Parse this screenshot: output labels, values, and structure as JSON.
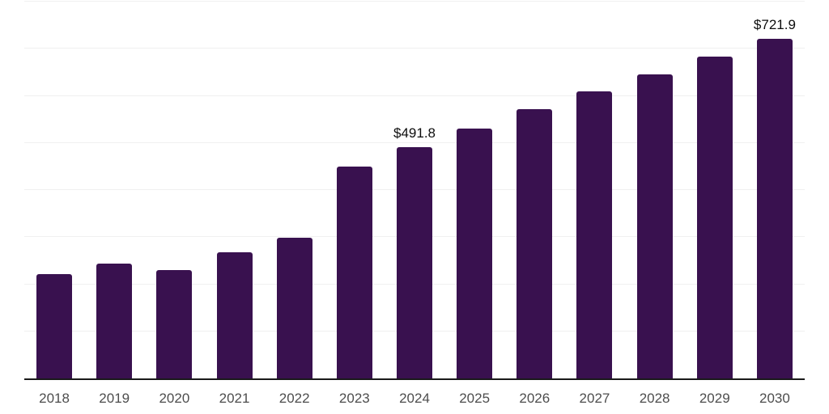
{
  "chart_data": {
    "type": "bar",
    "title": "",
    "xlabel": "",
    "ylabel": "",
    "categories": [
      "2018",
      "2019",
      "2020",
      "2021",
      "2022",
      "2023",
      "2024",
      "2025",
      "2026",
      "2027",
      "2028",
      "2029",
      "2030"
    ],
    "values": [
      221,
      244,
      230,
      268,
      299,
      450,
      491.8,
      531,
      571,
      610,
      646,
      684,
      721.9
    ],
    "value_labels": [
      "",
      "",
      "",
      "",
      "",
      "",
      "$491.8",
      "",
      "",
      "",
      "",
      "",
      "$721.9"
    ],
    "ylim": [
      0,
      800
    ],
    "grid_interval": 100,
    "grid": "horizontal",
    "legend_position": "none",
    "bar_color": "#39114F",
    "grid_color": "#f0f0f0",
    "axis_color": "#1a1a1a",
    "tick_label_color": "#4d4d4d",
    "value_label_color": "#0d0d0d",
    "background_color": "#ffffff"
  }
}
